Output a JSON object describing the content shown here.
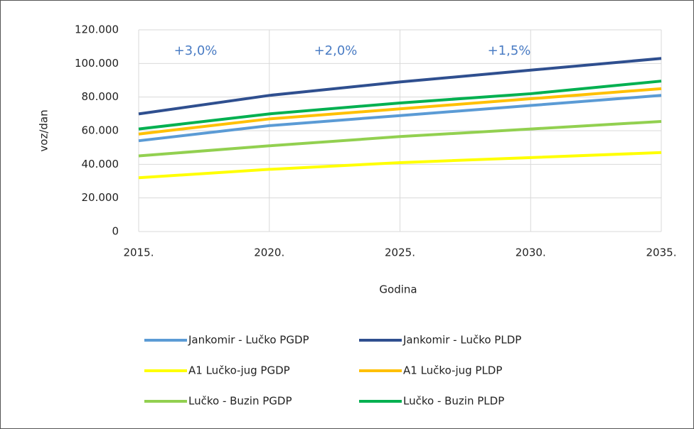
{
  "chart_data": {
    "type": "line",
    "ylabel": "voz/dan",
    "xlabel": "Godina",
    "x": [
      2015,
      2020,
      2025,
      2030,
      2035
    ],
    "xlim": [
      2015,
      2035
    ],
    "xticks": [
      {
        "value": 2015,
        "label": "2015."
      },
      {
        "value": 2020,
        "label": "2020."
      },
      {
        "value": 2025,
        "label": "2025."
      },
      {
        "value": 2030,
        "label": "2030."
      },
      {
        "value": 2035,
        "label": "2035."
      }
    ],
    "ylim": [
      0,
      120000
    ],
    "yticks": [
      {
        "value": 0,
        "label": "0"
      },
      {
        "value": 20000,
        "label": "20.000"
      },
      {
        "value": 40000,
        "label": "40.000"
      },
      {
        "value": 60000,
        "label": "60.000"
      },
      {
        "value": 80000,
        "label": "80.000"
      },
      {
        "value": 100000,
        "label": "100.000"
      },
      {
        "value": 120000,
        "label": "120.000"
      }
    ],
    "grid": true,
    "annotations": [
      "+3,0%",
      "+2,0%",
      "+1,5%"
    ],
    "series": [
      {
        "name": "Jankomir - Lučko PGDP",
        "color": "#5b9bd5",
        "values": [
          54000,
          63000,
          69000,
          75000,
          81000
        ]
      },
      {
        "name": "Jankomir - Lučko PLDP",
        "color": "#2f4f8f",
        "values": [
          70000,
          81000,
          89000,
          96000,
          103000
        ]
      },
      {
        "name": "A1 Lučko-jug PGDP",
        "color": "#ffff00",
        "values": [
          32000,
          37000,
          41000,
          44000,
          47000
        ]
      },
      {
        "name": "A1 Lučko-jug PLDP",
        "color": "#ffc000",
        "values": [
          58000,
          67000,
          73000,
          79000,
          85000
        ]
      },
      {
        "name": "Lučko - Buzin PGDP",
        "color": "#92d050",
        "values": [
          45000,
          51000,
          56500,
          61000,
          65500
        ]
      },
      {
        "name": "Lučko - Buzin PLDP",
        "color": "#00b050",
        "values": [
          61000,
          70000,
          76500,
          82000,
          89500
        ]
      }
    ],
    "legend": "bottom"
  }
}
